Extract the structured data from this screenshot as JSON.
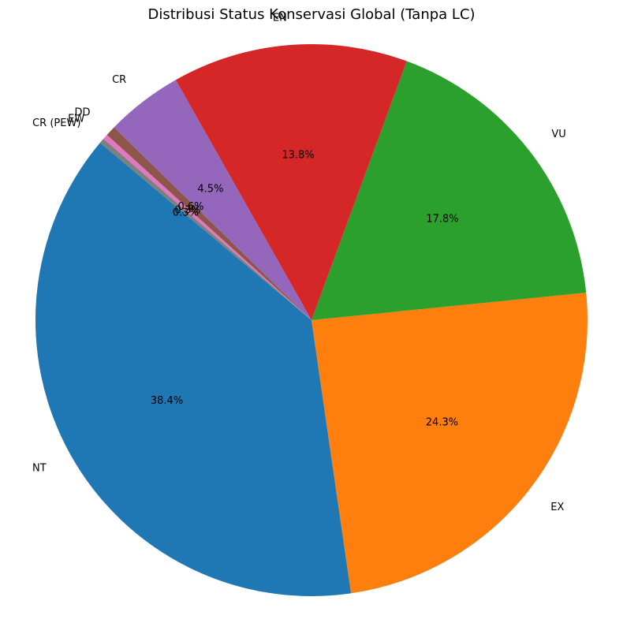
{
  "chart_data": {
    "type": "pie",
    "title": "Distribusi Status Konservasi Global (Tanpa LC)",
    "slices": [
      {
        "label": "NT",
        "value": 38.4,
        "pct_label": "38.4%",
        "color": "#1f77b4"
      },
      {
        "label": "EX",
        "value": 24.3,
        "pct_label": "24.3%",
        "color": "#ff7f0e"
      },
      {
        "label": "VU",
        "value": 17.8,
        "pct_label": "17.8%",
        "color": "#2ca02c"
      },
      {
        "label": "EN",
        "value": 13.8,
        "pct_label": "13.8%",
        "color": "#d62728"
      },
      {
        "label": "CR",
        "value": 4.5,
        "pct_label": "4.5%",
        "color": "#9467bd"
      },
      {
        "label": "DD",
        "value": 0.6,
        "pct_label": "0.6%",
        "color": "#8c564b"
      },
      {
        "label": "EW",
        "value": 0.3,
        "pct_label": "0.3%",
        "color": "#e377c2"
      },
      {
        "label": "CR (PEW)",
        "value": 0.3,
        "pct_label": "0.3%",
        "color": "#7f7f7f"
      }
    ],
    "start_angle_deg": 140,
    "direction": "counterclockwise"
  }
}
